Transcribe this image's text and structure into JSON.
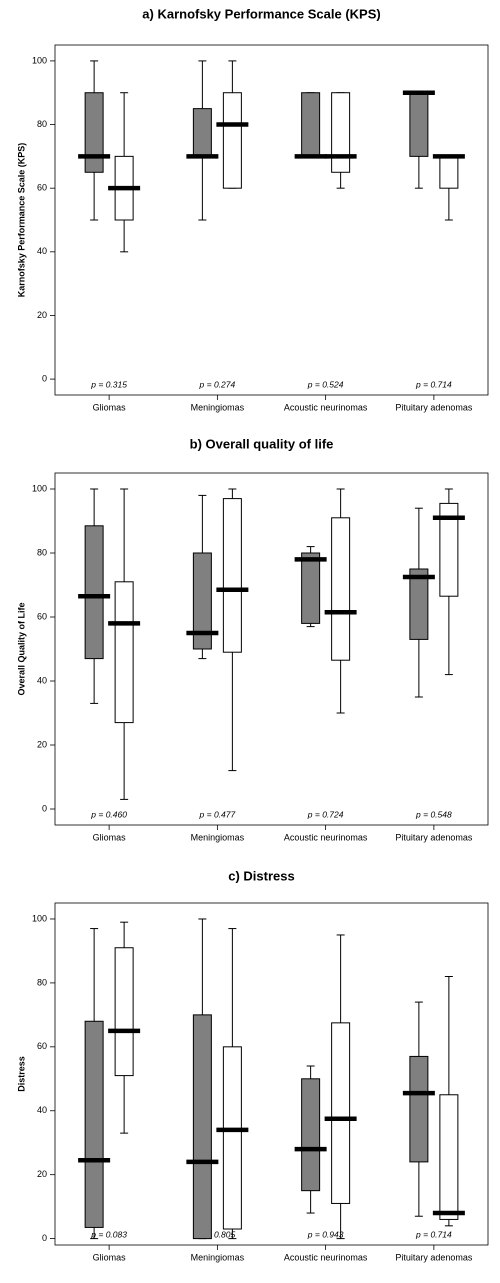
{
  "chart_data": [
    {
      "type": "box",
      "title": "a) Karnofsky Performance Scale (KPS)",
      "y_label": "Karnofsky Performance Scale (KPS)",
      "categories": [
        "Gliomas",
        "Meningiomas",
        "Acoustic neurinomas",
        "Pituitary adenomas"
      ],
      "annotations": [
        "p = 0.315",
        "p = 0.274",
        "p = 0.524",
        "p = 0.714"
      ],
      "ylim": [
        -5,
        105
      ],
      "yticks": [
        0,
        20,
        40,
        60,
        80,
        100
      ],
      "series": [
        {
          "color": "#808080",
          "min": [
            50,
            50,
            70,
            60
          ],
          "q1": [
            65,
            70,
            70,
            70
          ],
          "median": [
            70,
            70,
            70,
            90
          ],
          "q3": [
            90,
            85,
            90,
            90
          ],
          "max": [
            100,
            100,
            90,
            90
          ]
        },
        {
          "color": "#ffffff",
          "min": [
            40,
            60,
            60,
            50
          ],
          "q1": [
            50,
            60,
            65,
            60
          ],
          "median": [
            60,
            80,
            70,
            70
          ],
          "q3": [
            70,
            90,
            90,
            70
          ],
          "max": [
            90,
            100,
            90,
            70
          ]
        }
      ]
    },
    {
      "type": "box",
      "title": "b) Overall quality of life",
      "y_label": "Overall Quality of Life",
      "categories": [
        "Gliomas",
        "Meningiomas",
        "Acoustic neurinomas",
        "Pituitary adenomas"
      ],
      "annotations": [
        "p = 0.460",
        "p = 0.477",
        "p = 0.724",
        "p = 0.548"
      ],
      "ylim": [
        -5,
        105
      ],
      "yticks": [
        0,
        20,
        40,
        60,
        80,
        100
      ],
      "series": [
        {
          "color": "#808080",
          "min": [
            33,
            47,
            57,
            35
          ],
          "q1": [
            47,
            50,
            58,
            53
          ],
          "median": [
            66.5,
            55,
            78,
            72.5
          ],
          "q3": [
            88.5,
            80,
            80,
            75
          ],
          "max": [
            100,
            98,
            82,
            94
          ]
        },
        {
          "color": "#ffffff",
          "min": [
            3,
            12,
            30,
            42
          ],
          "q1": [
            27,
            49,
            46.5,
            66.5
          ],
          "median": [
            58,
            68.5,
            61.5,
            91
          ],
          "q3": [
            71,
            97,
            91,
            95.5
          ],
          "max": [
            100,
            100,
            100,
            100
          ]
        }
      ]
    },
    {
      "type": "box",
      "title": "c) Distress",
      "y_label": "Distress",
      "categories": [
        "Gliomas",
        "Meningiomas",
        "Acoustic neurinomas",
        "Pituitary adenomas"
      ],
      "annotations": [
        "p = 0.083",
        "p = 0.805",
        "p = 0.943",
        "p = 0.714"
      ],
      "ylim": [
        -2,
        105
      ],
      "yticks": [
        0,
        20,
        40,
        60,
        80,
        100
      ],
      "series": [
        {
          "color": "#808080",
          "min": [
            0,
            0,
            8,
            7
          ],
          "q1": [
            3.5,
            0,
            15,
            24
          ],
          "median": [
            24.5,
            24,
            28,
            45.5
          ],
          "q3": [
            68,
            70,
            50,
            57
          ],
          "max": [
            97,
            100,
            54,
            74
          ]
        },
        {
          "color": "#ffffff",
          "min": [
            33,
            0,
            0,
            4
          ],
          "q1": [
            51,
            3,
            11,
            6
          ],
          "median": [
            65,
            34,
            37.5,
            8
          ],
          "q3": [
            91,
            60,
            67.5,
            45
          ],
          "max": [
            99,
            97,
            95,
            82
          ]
        }
      ]
    }
  ]
}
